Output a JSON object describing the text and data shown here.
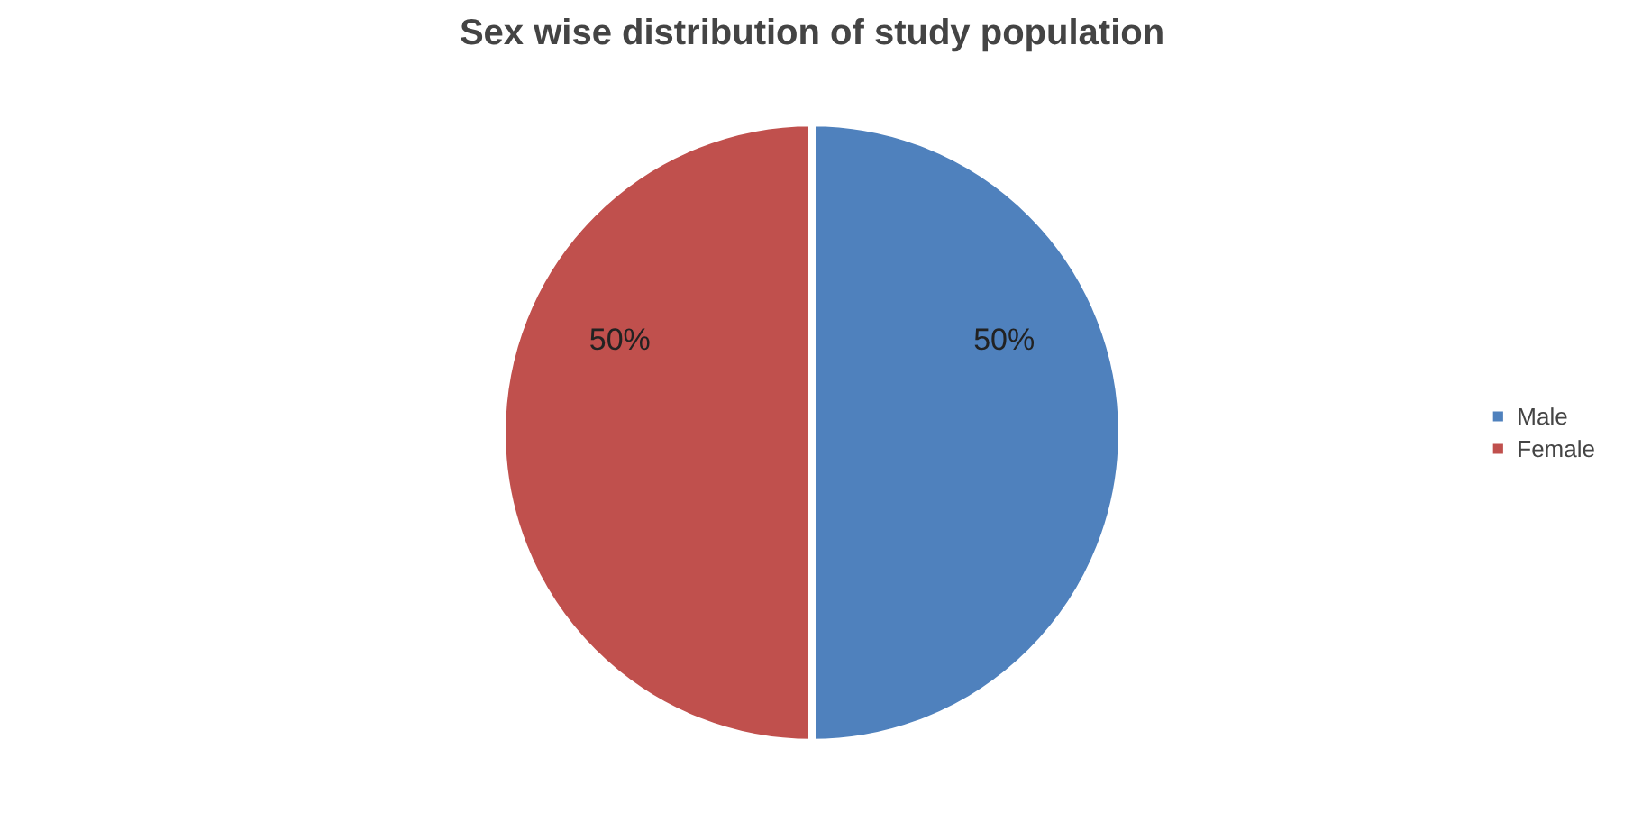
{
  "chart_data": {
    "type": "pie",
    "title": "Sex wise distribution of study population",
    "categories": [
      "Male",
      "Female"
    ],
    "values": [
      50,
      50
    ],
    "colors": [
      "#4f81bd",
      "#c0504d"
    ],
    "value_labels": [
      "50%",
      "50%"
    ],
    "legend": "right"
  }
}
